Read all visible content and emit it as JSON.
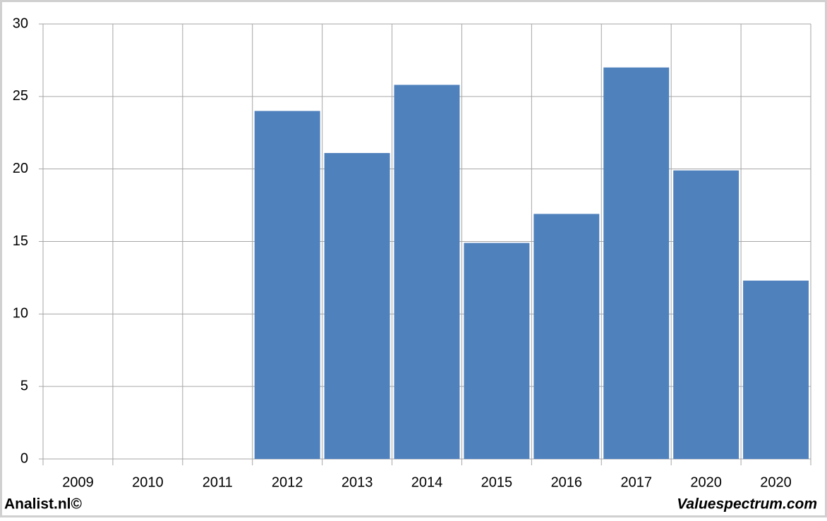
{
  "chart_data": {
    "type": "bar",
    "categories": [
      "2009",
      "2010",
      "2011",
      "2012",
      "2013",
      "2014",
      "2015",
      "2016",
      "2017",
      "2020",
      "2020"
    ],
    "values": [
      null,
      null,
      null,
      24,
      21.1,
      25.8,
      14.9,
      16.9,
      27.0,
      19.9,
      12.3
    ],
    "color": "#4f81bd",
    "ylim": [
      0,
      30
    ],
    "yticks": [
      0,
      5,
      10,
      15,
      20,
      25,
      30
    ],
    "grid": true,
    "footer_left": "Analist.nl©",
    "footer_right": "Valuespectrum.com"
  }
}
